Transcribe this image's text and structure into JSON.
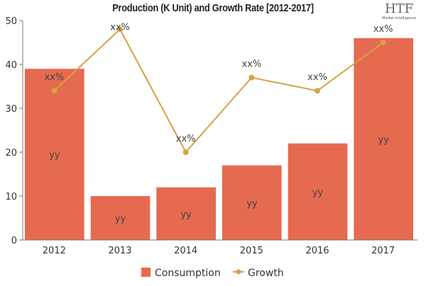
{
  "chart_data": {
    "type": "bar",
    "title": "Production (K Unit) and Growth Rate [2012-2017]",
    "categories": [
      "2012",
      "2013",
      "2014",
      "2015",
      "2016",
      "2017"
    ],
    "ylim": [
      0,
      50
    ],
    "yticks": [
      0,
      10,
      20,
      30,
      40,
      50
    ],
    "grid": false,
    "legend": "bottom",
    "series": [
      {
        "name": "Consumption",
        "type": "bar",
        "values": [
          39,
          10,
          12,
          17,
          22,
          46
        ],
        "color": "#E66A50",
        "data_labels": [
          "yy",
          "yy",
          "yy",
          "yy",
          "yy",
          "yy"
        ]
      },
      {
        "name": "Growth",
        "type": "line",
        "values": [
          34,
          48,
          20,
          37,
          34,
          45
        ],
        "color": "#D4A347",
        "data_labels": [
          "xx%",
          "xx%",
          "xx%",
          "xx%",
          "xx%",
          "xx%"
        ]
      }
    ]
  },
  "logo": {
    "text": "HTF",
    "subtext": "Market Intelligence"
  }
}
